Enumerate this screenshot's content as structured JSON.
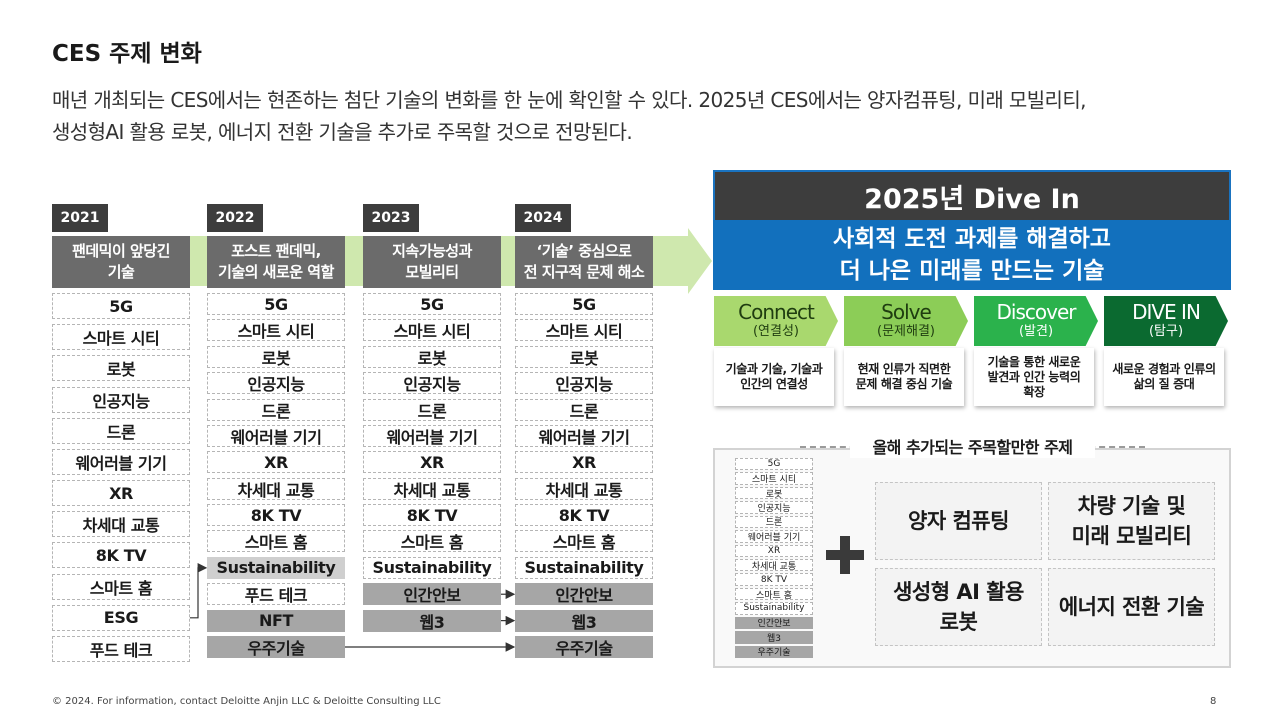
{
  "header": {
    "title": "CES 주제 변화",
    "lead": [
      "매년 개최되는 CES에서는 현존하는 첨단 기술의 변화를 한 눈에 확인할 수 있다. 2025년 CES에서는 양자컴퓨팅, 미래 모빌리티,",
      "생성형AI 활용 로봇, 에너지 전환 기술을 추가로 주목할 것으로 전망된다."
    ]
  },
  "timeline": [
    {
      "year": "2021",
      "heading": [
        "팬데믹이 앞당긴",
        "기술"
      ],
      "items": [
        {
          "label": "5G",
          "style": "plain"
        },
        {
          "label": "스마트 시티",
          "style": "plain"
        },
        {
          "label": "로봇",
          "style": "plain"
        },
        {
          "label": "인공지능",
          "style": "plain"
        },
        {
          "label": "드론",
          "style": "plain"
        },
        {
          "label": "웨어러블 기기",
          "style": "plain"
        },
        {
          "label": "XR",
          "style": "plain"
        },
        {
          "label": "차세대 교통",
          "style": "plain"
        },
        {
          "label": "8K TV",
          "style": "plain"
        },
        {
          "label": "스마트 홈",
          "style": "plain"
        },
        {
          "label": "ESG",
          "style": "plain"
        },
        {
          "label": "푸드 테크",
          "style": "plain"
        }
      ]
    },
    {
      "year": "2022",
      "heading": [
        "포스트 팬데믹,",
        "기술의 새로운 역할"
      ],
      "items": [
        {
          "label": "5G",
          "style": "plain"
        },
        {
          "label": "스마트 시티",
          "style": "plain"
        },
        {
          "label": "로봇",
          "style": "plain"
        },
        {
          "label": "인공지능",
          "style": "plain"
        },
        {
          "label": "드론",
          "style": "plain"
        },
        {
          "label": "웨어러블 기기",
          "style": "plain"
        },
        {
          "label": "XR",
          "style": "plain"
        },
        {
          "label": "차세대 교통",
          "style": "plain"
        },
        {
          "label": "8K TV",
          "style": "plain"
        },
        {
          "label": "스마트 홈",
          "style": "plain"
        },
        {
          "label": "Sustainability",
          "style": "light"
        },
        {
          "label": "푸드 테크",
          "style": "plain"
        },
        {
          "label": "NFT",
          "style": "dark"
        },
        {
          "label": "우주기술",
          "style": "dark"
        }
      ]
    },
    {
      "year": "2023",
      "heading": [
        "지속가능성과",
        "모빌리티"
      ],
      "items": [
        {
          "label": "5G",
          "style": "plain"
        },
        {
          "label": "스마트 시티",
          "style": "plain"
        },
        {
          "label": "로봇",
          "style": "plain"
        },
        {
          "label": "인공지능",
          "style": "plain"
        },
        {
          "label": "드론",
          "style": "plain"
        },
        {
          "label": "웨어러블 기기",
          "style": "plain"
        },
        {
          "label": "XR",
          "style": "plain"
        },
        {
          "label": "차세대 교통",
          "style": "plain"
        },
        {
          "label": "8K TV",
          "style": "plain"
        },
        {
          "label": "스마트 홈",
          "style": "plain"
        },
        {
          "label": "Sustainability",
          "style": "plain"
        },
        {
          "label": "인간안보",
          "style": "dark"
        },
        {
          "label": "웹3",
          "style": "dark"
        }
      ]
    },
    {
      "year": "2024",
      "heading": [
        "‘기술’ 중심으로",
        "전 지구적 문제 해소"
      ],
      "items": [
        {
          "label": "5G",
          "style": "plain"
        },
        {
          "label": "스마트 시티",
          "style": "plain"
        },
        {
          "label": "로봇",
          "style": "plain"
        },
        {
          "label": "인공지능",
          "style": "plain"
        },
        {
          "label": "드론",
          "style": "plain"
        },
        {
          "label": "웨어러블 기기",
          "style": "plain"
        },
        {
          "label": "XR",
          "style": "plain"
        },
        {
          "label": "차세대 교통",
          "style": "plain"
        },
        {
          "label": "8K TV",
          "style": "plain"
        },
        {
          "label": "스마트 홈",
          "style": "plain"
        },
        {
          "label": "Sustainability",
          "style": "plain"
        },
        {
          "label": "인간안보",
          "style": "dark"
        },
        {
          "label": "웹3",
          "style": "dark"
        },
        {
          "label": "우주기술",
          "style": "dark"
        }
      ]
    }
  ],
  "dive": {
    "title": "2025년 Dive In",
    "subtitle": [
      "사회적 도전 과제를 해결하고",
      "더 나은 미래를 만드는 기술"
    ],
    "stages": [
      {
        "name": "Connect",
        "sub": "(연결성)",
        "color": "#a9d86e",
        "text_color": "#1f3d10",
        "desc": [
          "기술과 기술, 기술과",
          "인간의 연결성"
        ]
      },
      {
        "name": "Solve",
        "sub": "(문제해결)",
        "color": "#8ccd57",
        "text_color": "#1f3d10",
        "desc": [
          "현재 인류가 직면한",
          "문제 해결 중심 기술"
        ]
      },
      {
        "name": "Discover",
        "sub": "(발견)",
        "color": "#2bb24c",
        "text_color": "#ffffff",
        "desc": [
          "기술을 통한 새로운",
          "발견과 인간 능력의",
          "확장"
        ]
      },
      {
        "name": "DIVE IN",
        "sub": "(탐구)",
        "color": "#0b6a30",
        "text_color": "#ffffff",
        "desc": [
          "새로운 경험과 인류의",
          "삶의 질 증대"
        ]
      }
    ]
  },
  "added": {
    "heading": "올해 추가되는 주목할만한 주제",
    "list": [
      {
        "label": "5G",
        "style": "plain"
      },
      {
        "label": "스마트 시티",
        "style": "plain"
      },
      {
        "label": "로봇",
        "style": "plain"
      },
      {
        "label": "인공지능",
        "style": "plain"
      },
      {
        "label": "드론",
        "style": "plain"
      },
      {
        "label": "웨어러블 기기",
        "style": "plain"
      },
      {
        "label": "XR",
        "style": "plain"
      },
      {
        "label": "차세대 교통",
        "style": "plain"
      },
      {
        "label": "8K TV",
        "style": "plain"
      },
      {
        "label": "스마트 홈",
        "style": "plain"
      },
      {
        "label": "Sustainability",
        "style": "plain"
      },
      {
        "label": "인간안보",
        "style": "dark"
      },
      {
        "label": "웹3",
        "style": "dark"
      },
      {
        "label": "우주기술",
        "style": "dark"
      }
    ],
    "topics": [
      [
        "양자 컴퓨팅"
      ],
      [
        "차량 기술 및",
        "미래 모빌리티"
      ],
      [
        "생성형 AI 활용",
        "로봇"
      ],
      [
        "에너지 전환 기술"
      ]
    ]
  },
  "footer": {
    "copyright": "© 2024. For information, contact Deloitte Anjin LLC & Deloitte Consulting LLC",
    "page": "8"
  }
}
